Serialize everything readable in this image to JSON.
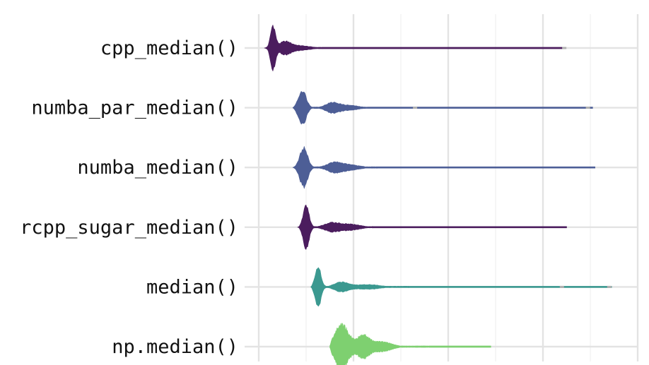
{
  "chart_data": {
    "type": "violin",
    "orientation": "horizontal",
    "title": "",
    "xlabel": "",
    "ylabel": "",
    "grid": true,
    "legend": "none",
    "x_tick_labels_visible": false,
    "xlim": [
      0,
      8
    ],
    "x_grid_major": [
      0,
      2,
      4,
      6,
      8
    ],
    "x_grid_minor": [
      1,
      3,
      5,
      7
    ],
    "categories": [
      "cpp_median()",
      "numba_par_median()",
      "numba_median()",
      "rcpp_sugar_median()",
      "median()",
      "np.median()"
    ],
    "series": [
      {
        "category": "cpp_median()",
        "color": "#4b1d5e",
        "range": [
          0.12,
          6.45
        ],
        "peaks": [
          {
            "x": 0.3,
            "half_width": 0.92,
            "spread": 0.05
          },
          {
            "x": 0.55,
            "half_width": 0.22,
            "spread": 0.12
          },
          {
            "x": 0.82,
            "half_width": 0.1,
            "spread": 0.25
          }
        ],
        "tail_half_width": 0.03,
        "body_end": 1.35,
        "rare_points": [
          6.45
        ]
      },
      {
        "category": "numba_par_median()",
        "color": "#4d5e96",
        "range": [
          0.72,
          7.05
        ],
        "peaks": [
          {
            "x": 0.92,
            "half_width": 0.72,
            "spread": 0.08
          },
          {
            "x": 1.55,
            "half_width": 0.2,
            "spread": 0.14
          },
          {
            "x": 1.9,
            "half_width": 0.1,
            "spread": 0.2
          }
        ],
        "tail_half_width": 0.03,
        "body_end": 2.3,
        "rare_points": [
          3.3,
          6.95
        ]
      },
      {
        "category": "numba_median()",
        "color": "#4d5e96",
        "range": [
          0.72,
          7.1
        ],
        "peaks": [
          {
            "x": 0.95,
            "half_width": 0.82,
            "spread": 0.08
          },
          {
            "x": 1.6,
            "half_width": 0.2,
            "spread": 0.16
          },
          {
            "x": 1.95,
            "half_width": 0.1,
            "spread": 0.2
          }
        ],
        "tail_half_width": 0.03,
        "body_end": 2.5,
        "rare_points": []
      },
      {
        "category": "rcpp_sugar_median()",
        "color": "#4b1d5e",
        "range": [
          0.82,
          6.5
        ],
        "peaks": [
          {
            "x": 1.0,
            "half_width": 0.92,
            "spread": 0.06
          },
          {
            "x": 1.55,
            "half_width": 0.18,
            "spread": 0.16
          },
          {
            "x": 1.95,
            "half_width": 0.12,
            "spread": 0.2
          }
        ],
        "tail_half_width": 0.03,
        "body_end": 2.45,
        "rare_points": []
      },
      {
        "category": "median()",
        "color": "#3b9990",
        "range": [
          1.1,
          7.45
        ],
        "peaks": [
          {
            "x": 1.25,
            "half_width": 0.85,
            "spread": 0.06
          },
          {
            "x": 1.75,
            "half_width": 0.2,
            "spread": 0.15
          },
          {
            "x": 2.3,
            "half_width": 0.1,
            "spread": 0.25
          }
        ],
        "tail_half_width": 0.03,
        "body_end": 3.2,
        "rare_points": [
          6.4,
          7.4
        ]
      },
      {
        "category": "np.median()",
        "color": "#7ed070",
        "range": [
          1.5,
          4.9
        ],
        "peaks": [
          {
            "x": 1.75,
            "half_width": 0.92,
            "spread": 0.14
          },
          {
            "x": 2.2,
            "half_width": 0.45,
            "spread": 0.13
          },
          {
            "x": 2.6,
            "half_width": 0.2,
            "spread": 0.2
          }
        ],
        "tail_half_width": 0.03,
        "body_end": 3.6,
        "rare_points": []
      }
    ]
  }
}
